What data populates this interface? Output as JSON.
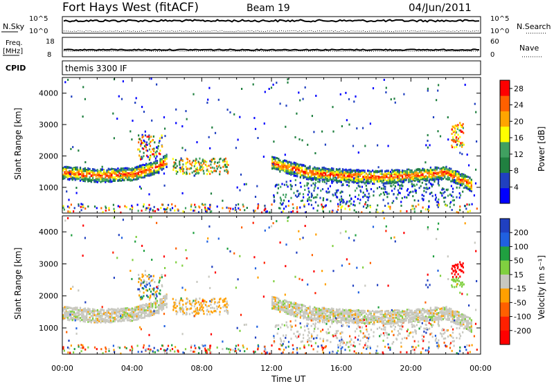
{
  "header": {
    "station": "Fort Hays West (fitACF)",
    "beam": "Beam 19",
    "date": "04/Jun/2011"
  },
  "top_panels": {
    "nsky_label": "N.Sky",
    "nsky_ticks": [
      "10^5",
      "10^0"
    ],
    "nsearch_label": "N.Search",
    "nsearch_ticks": [
      "10^5",
      "10^0"
    ],
    "freq_label": "Freq.",
    "freq_unit": "[MHz]",
    "freq_ticks": [
      "18",
      "8"
    ],
    "nave_label": "Nave",
    "nave_ticks": [
      "60",
      "0"
    ],
    "cpid_label": "CPID",
    "cpid_value": "themis 3300 IF"
  },
  "chart_data": [
    {
      "type": "heatmap",
      "panel": "power",
      "ylabel": "Slant Range [km]",
      "xlabel": "",
      "x_ticks": [
        "00:00",
        "04:00",
        "08:00",
        "12:00",
        "16:00",
        "20:00",
        "00:00"
      ],
      "xlim": [
        0,
        24
      ],
      "ylim": [
        180,
        4500
      ],
      "y_ticks": [
        1000,
        2000,
        3000,
        4000
      ],
      "colorbar": {
        "label": "Power [dB]",
        "ticks": [
          4,
          8,
          12,
          16,
          20,
          24,
          28
        ],
        "range": [
          0,
          30
        ],
        "colors": [
          "#0000ff",
          "#2040c0",
          "#208040",
          "#40a060",
          "#ffff00",
          "#ffa500",
          "#ff6000",
          "#ff0000"
        ]
      },
      "echo_bands": [
        {
          "name": "main",
          "t": [
            0,
            2,
            4,
            5.5,
            6
          ],
          "range_km": [
            1500,
            1400,
            1450,
            1700,
            1900
          ]
        },
        {
          "name": "main",
          "t": [
            12,
            14,
            16,
            18,
            20,
            22,
            23.5
          ],
          "range_km": [
            1800,
            1500,
            1400,
            1350,
            1400,
            1500,
            1100
          ]
        }
      ]
    },
    {
      "type": "heatmap",
      "panel": "velocity",
      "ylabel": "Slant Range [km]",
      "xlabel": "Time UT",
      "x_ticks": [
        "00:00",
        "04:00",
        "08:00",
        "12:00",
        "16:00",
        "20:00",
        "00:00"
      ],
      "xlim": [
        0,
        24
      ],
      "ylim": [
        180,
        4500
      ],
      "y_ticks": [
        1000,
        2000,
        3000,
        4000
      ],
      "colorbar": {
        "label": "Velocity [m s⁻¹]",
        "ticks": [
          200,
          100,
          50,
          15,
          -15,
          -50,
          -100,
          -200
        ],
        "colors": [
          "#2040c0",
          "#2060e0",
          "#20a040",
          "#80d040",
          "#c8c8c0",
          "#ffa000",
          "#ff6000",
          "#ff2000",
          "#ff0000"
        ]
      }
    }
  ]
}
